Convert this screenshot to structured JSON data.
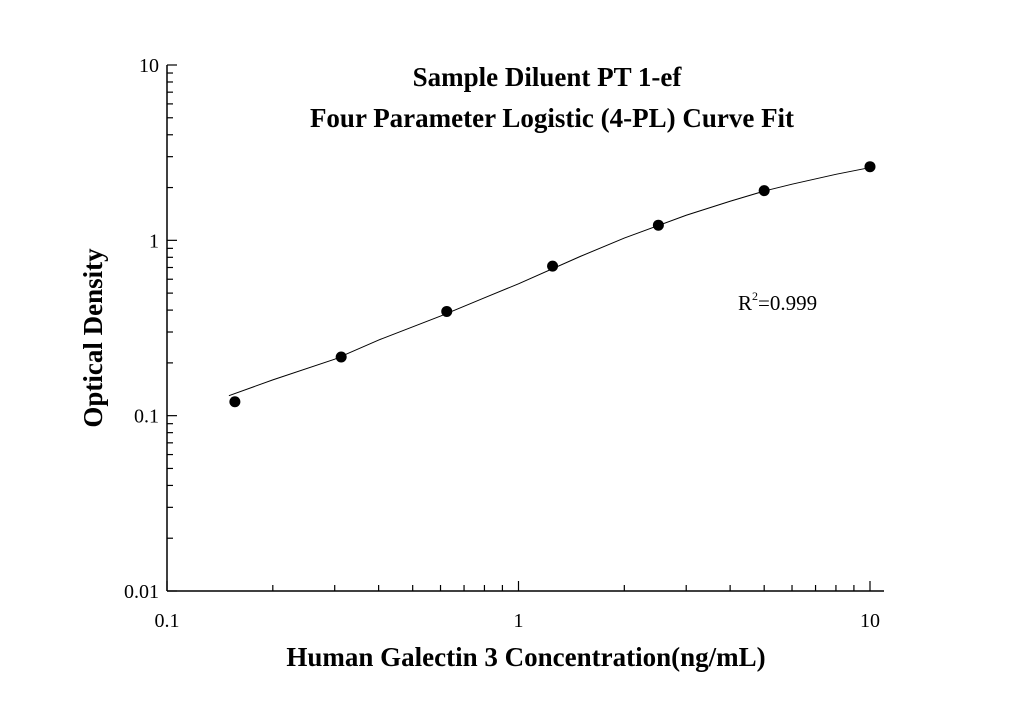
{
  "chart_data": {
    "type": "scatter",
    "title": "Sample Diluent PT 1-ef",
    "subtitle": "Four Parameter Logistic (4-PL) Curve Fit",
    "xlabel": "Human Galectin 3 Concentration(ng/mL)",
    "ylabel": "Optical Density",
    "x_scale": "log",
    "y_scale": "log",
    "xlim": [
      0.1,
      10
    ],
    "ylim": [
      0.01,
      10
    ],
    "x_ticks": [
      {
        "value": 0.1,
        "label": "0.1"
      },
      {
        "value": 1,
        "label": "1"
      },
      {
        "value": 10,
        "label": "10"
      }
    ],
    "y_ticks": [
      {
        "value": 0.01,
        "label": "0.01"
      },
      {
        "value": 0.1,
        "label": "0.1"
      },
      {
        "value": 1,
        "label": "1"
      },
      {
        "value": 10,
        "label": "10"
      }
    ],
    "grid": false,
    "points": {
      "x": [
        0.156,
        0.313,
        0.625,
        1.25,
        2.5,
        5,
        10
      ],
      "y": [
        0.12,
        0.216,
        0.393,
        0.713,
        1.22,
        1.92,
        2.63
      ]
    },
    "fit_curve": {
      "model": "4-PL",
      "x": [
        0.15,
        0.2,
        0.3,
        0.4,
        0.6,
        0.8,
        1,
        1.5,
        2,
        3,
        4,
        5,
        6,
        8,
        10
      ],
      "y": [
        0.13,
        0.16,
        0.21,
        0.27,
        0.37,
        0.47,
        0.565,
        0.81,
        1.03,
        1.39,
        1.67,
        1.91,
        2.09,
        2.38,
        2.6
      ]
    },
    "annotation": {
      "base": "R",
      "sup": "2",
      "rest": "=0.999",
      "at": {
        "x": 4.4,
        "y": 0.3
      }
    }
  }
}
